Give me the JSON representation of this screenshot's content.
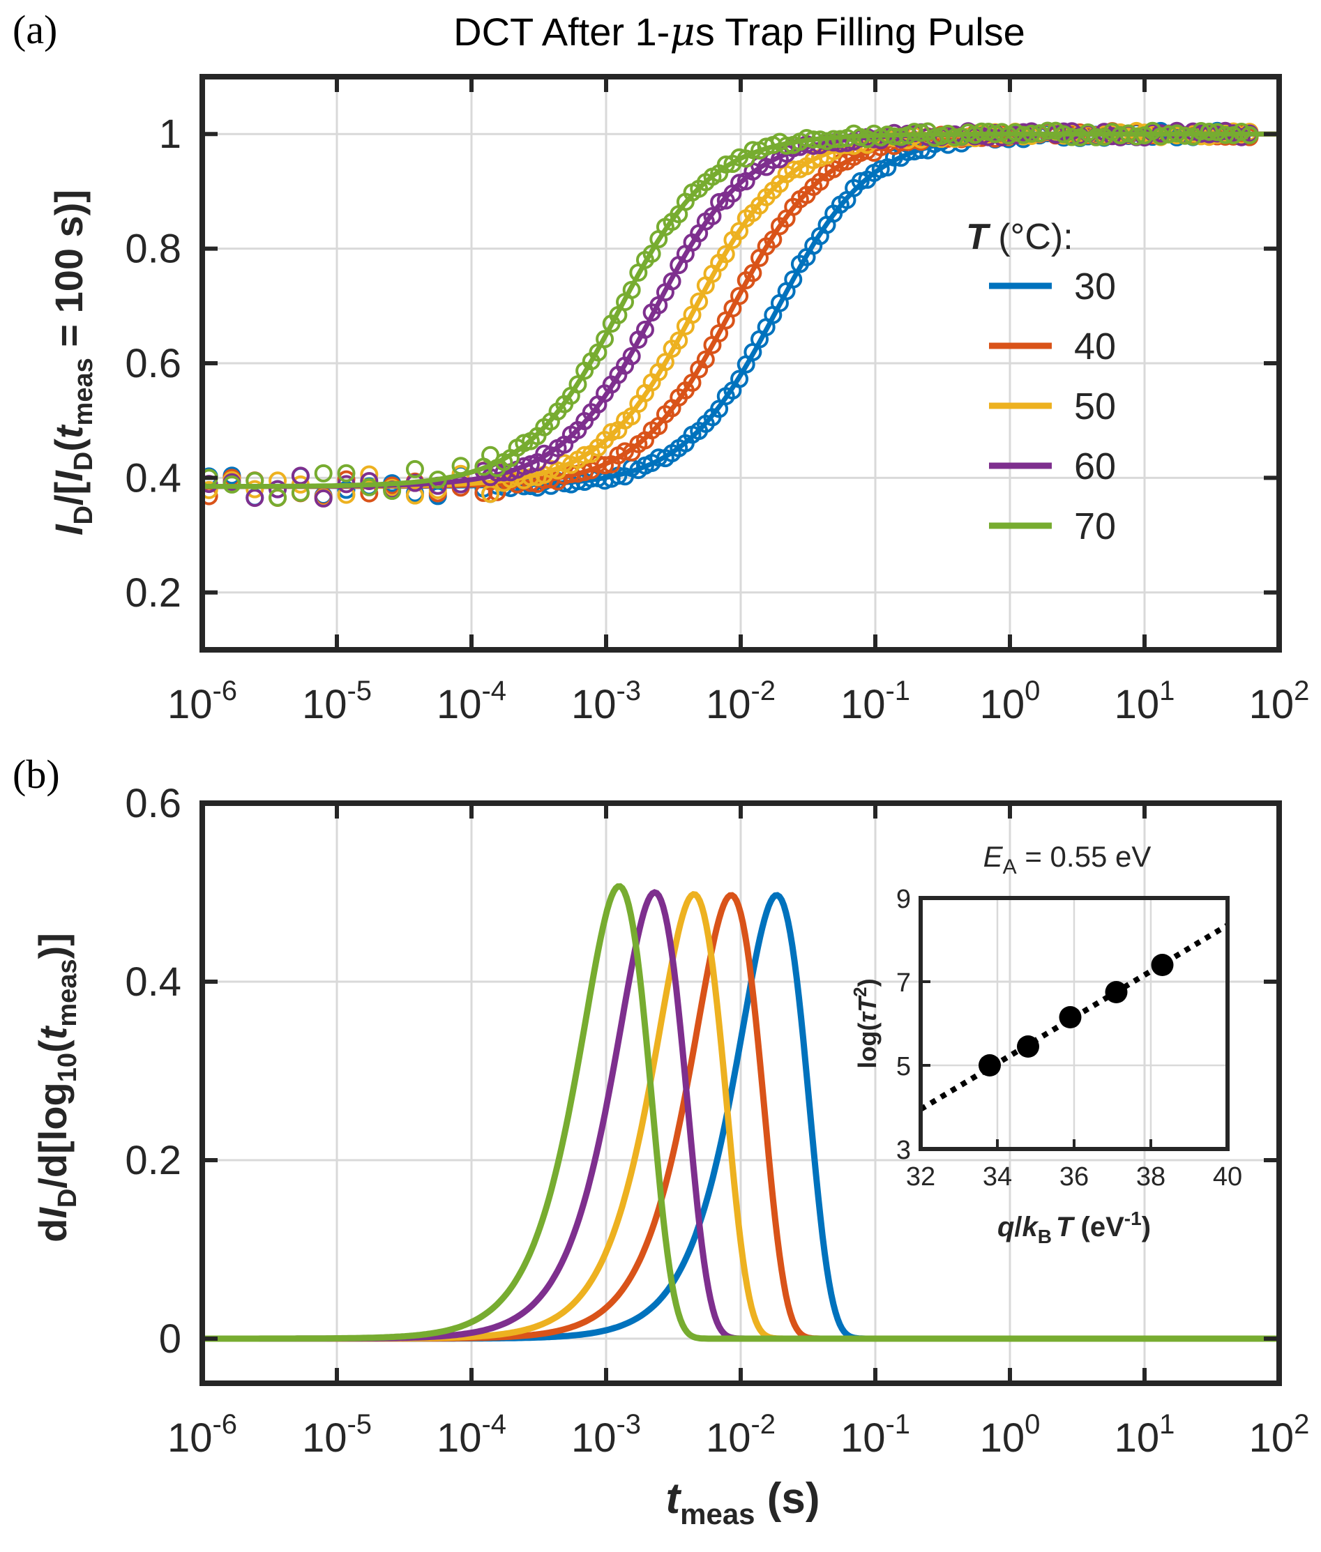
{
  "figure": {
    "panel_a_label": "(a)",
    "panel_b_label": "(b)",
    "title_prefix": "DCT After 1-",
    "title_mu": "μ",
    "title_suffix": "s Trap Filling Pulse"
  },
  "legend": {
    "title_italic": "T",
    "title_rest": " (°C):",
    "entries": [
      "30",
      "40",
      "50",
      "60",
      "70"
    ]
  },
  "colors": {
    "series": [
      "#0072BD",
      "#D95319",
      "#EDB120",
      "#7E2F8E",
      "#77AC30"
    ],
    "axis": "#262626",
    "grid": "#d9d9d9",
    "inset_points": "#000000"
  },
  "axis_text": {
    "x_tick_base": "10",
    "ya_label": {
      "p1": "I",
      "p1s": "D",
      "p2": "/[",
      "p3": "I",
      "p3s": "D",
      "p4": "(",
      "p5": "t",
      "p5s": "meas",
      "p6": " = 100 s)]"
    },
    "yb_label": {
      "p1": "d",
      "p2": "I",
      "p2s": "D",
      "p3": "/d[log",
      "p3s": "10",
      "p4": "(",
      "p5": "t",
      "p5s": "meas",
      "p6": ")]"
    },
    "xb_label": {
      "p1": "t",
      "p1s": "meas",
      "p2": " (s)"
    },
    "inset_title": {
      "p1": "E",
      "p1s": "A",
      "p2": " = 0.55 eV"
    },
    "inset_ylabel": {
      "p1": "log(",
      "p2": "τT",
      "p2sup": "2",
      "p3": ")"
    },
    "inset_xlabel": {
      "p1": "q",
      "p2": "/",
      "p3": "k",
      "p3s": "B",
      "p4": "T",
      "p5": " (eV",
      "p5sup": "-1",
      "p6": ")"
    }
  },
  "chart_data": [
    {
      "type": "line",
      "panel": "a",
      "title": "DCT After 1-μs Trap Filling Pulse",
      "xlabel": "t_meas (s)",
      "ylabel": "I_D/[I_D(t_meas = 100 s)]",
      "xscale": "log",
      "xlim": [
        1e-06,
        100
      ],
      "ylim": [
        0.1,
        1.1
      ],
      "xtick_exponents": [
        -6,
        -5,
        -4,
        -3,
        -2,
        -1,
        0,
        1,
        2
      ],
      "yticks": [
        0.2,
        0.4,
        0.6,
        0.8,
        1
      ],
      "ytick_labels": [
        "0.2",
        "0.4",
        "0.6",
        "0.8",
        "1"
      ],
      "legend_title": "T (°C):",
      "legend_position": "right",
      "markers": "open circles (measured) with solid fit lines",
      "series": [
        {
          "name": "30",
          "tau_s": 0.0185,
          "y_min": 0.385,
          "y_max": 1.0
        },
        {
          "name": "40",
          "tau_s": 0.0085,
          "y_min": 0.385,
          "y_max": 1.0
        },
        {
          "name": "50",
          "tau_s": 0.0045,
          "y_min": 0.385,
          "y_max": 1.0
        },
        {
          "name": "60",
          "tau_s": 0.0023,
          "y_min": 0.385,
          "y_max": 1.0
        },
        {
          "name": "70",
          "tau_s": 0.00125,
          "y_min": 0.385,
          "y_max": 1.0
        }
      ]
    },
    {
      "type": "line",
      "panel": "b",
      "xlabel": "t_meas (s)",
      "ylabel": "dI_D/d[log10(t_meas)]",
      "xscale": "log",
      "xlim": [
        1e-06,
        100
      ],
      "ylim": [
        -0.05,
        0.6
      ],
      "xtick_exponents": [
        -6,
        -5,
        -4,
        -3,
        -2,
        -1,
        0,
        1,
        2
      ],
      "yticks": [
        0,
        0.2,
        0.4,
        0.6
      ],
      "ytick_labels": [
        "0",
        "0.2",
        "0.4",
        "0.6"
      ],
      "series": [
        {
          "name": "30",
          "peak_t_s": 0.0185,
          "peak_value": 0.497
        },
        {
          "name": "40",
          "peak_t_s": 0.0085,
          "peak_value": 0.497
        },
        {
          "name": "50",
          "peak_t_s": 0.0045,
          "peak_value": 0.498
        },
        {
          "name": "60",
          "peak_t_s": 0.0023,
          "peak_value": 0.5
        },
        {
          "name": "70",
          "peak_t_s": 0.00125,
          "peak_value": 0.507
        }
      ]
    },
    {
      "type": "scatter",
      "panel": "b-inset",
      "title": "E_A = 0.55 eV",
      "xlabel": "q/k_B T (eV^-1)",
      "ylabel": "log(τT^2)",
      "xlim": [
        32,
        40
      ],
      "ylim": [
        3,
        9
      ],
      "xticks": [
        32,
        34,
        36,
        38,
        40
      ],
      "yticks": [
        3,
        5,
        7,
        9
      ],
      "x": [
        33.8,
        34.8,
        35.9,
        37.1,
        38.3
      ],
      "y": [
        5.0,
        5.45,
        6.15,
        6.75,
        7.4
      ],
      "fit_line": {
        "style": "dotted",
        "x": [
          32,
          40
        ],
        "y": [
          3.95,
          8.35
        ]
      }
    }
  ]
}
